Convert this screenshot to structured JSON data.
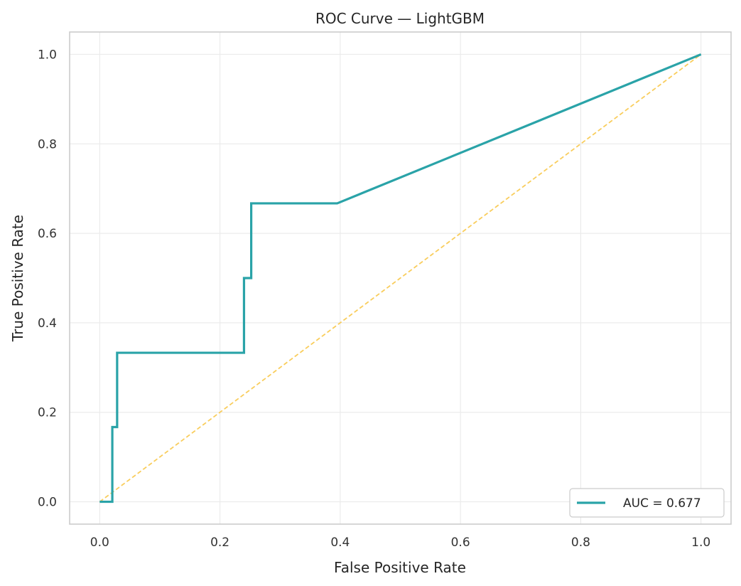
{
  "chart_data": {
    "type": "line",
    "title": "ROC Curve — LightGBM",
    "xlabel": "False Positive Rate",
    "ylabel": "True Positive Rate",
    "xlim": [
      -0.05,
      1.05
    ],
    "ylim": [
      -0.05,
      1.05
    ],
    "xticks": [
      "0.0",
      "0.2",
      "0.4",
      "0.6",
      "0.8",
      "1.0"
    ],
    "yticks": [
      "0.0",
      "0.2",
      "0.4",
      "0.6",
      "0.8",
      "1.0"
    ],
    "grid": true,
    "legend_position": "lower-right",
    "series": [
      {
        "name": "AUC = 0.677",
        "color": "#2aa3a8",
        "style": "solid",
        "x": [
          0.0,
          0.021,
          0.021,
          0.029,
          0.029,
          0.24,
          0.24,
          0.252,
          0.252,
          0.395,
          1.0
        ],
        "y": [
          0.0,
          0.0,
          0.167,
          0.167,
          0.333,
          0.333,
          0.5,
          0.5,
          0.667,
          0.667,
          1.0
        ]
      },
      {
        "color": "#f9cd5c",
        "style": "dashed",
        "x": [
          0.0,
          1.0
        ],
        "y": [
          0.0,
          1.0
        ]
      }
    ]
  }
}
